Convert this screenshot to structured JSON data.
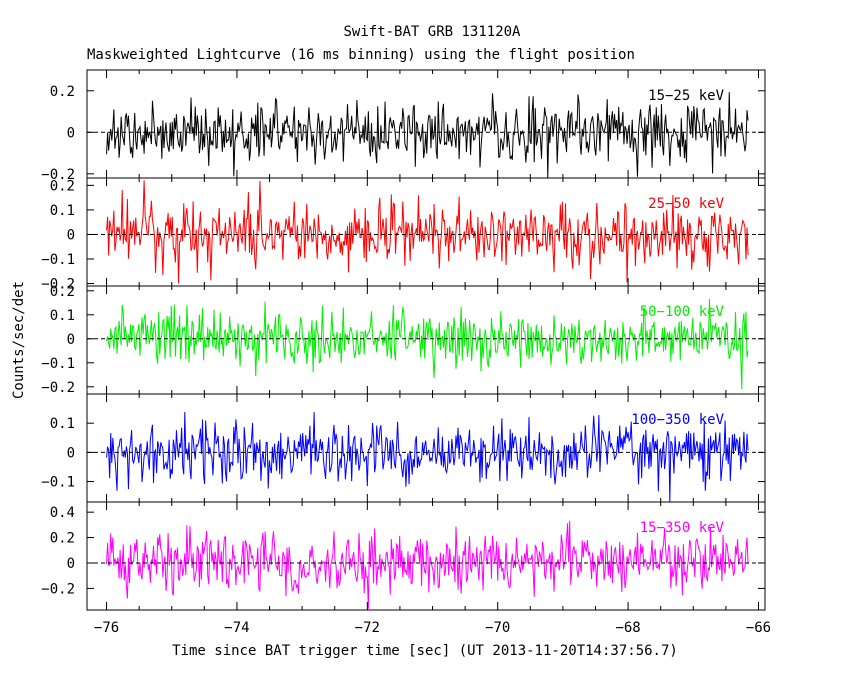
{
  "chart_data": {
    "type": "line",
    "title": "Swift-BAT GRB 131120A",
    "subtitle": "Maskweighted Lightcurve (16 ms binning) using the flight position",
    "ylabel": "Counts/sec/det",
    "xlabel": "Time since BAT trigger time [sec] (UT 2013-11-20T14:37:56.7)",
    "xlim": [
      -76.3,
      -65.9
    ],
    "x_ticks": [
      "-76",
      "-74",
      "-72",
      "-70",
      "-68",
      "-66"
    ],
    "x_tick_values": [
      -76,
      -74,
      -72,
      -70,
      -68,
      -66
    ],
    "x_start": -76.0,
    "x_end": -66.16,
    "bin_sec": 0.016,
    "panels": [
      {
        "name": "15-25 keV",
        "label": "15−25 keV",
        "color": "#000000",
        "ylim": [
          -0.22,
          0.3
        ],
        "y_ticks": [
          "0.2",
          "0",
          "−0.2"
        ],
        "y_tick_values": [
          0.2,
          0,
          -0.2
        ],
        "noise_sigma": 0.07,
        "noise_max": 0.3
      },
      {
        "name": "25-50 keV",
        "label": "25−50 keV",
        "color": "#ff0000",
        "ylim": [
          -0.21,
          0.23
        ],
        "y_ticks": [
          "0.2",
          "0.1",
          "0",
          "−0.1",
          "−0.2"
        ],
        "y_tick_values": [
          0.2,
          0.1,
          0,
          -0.1,
          -0.2
        ],
        "noise_sigma": 0.065,
        "noise_max": 0.22
      },
      {
        "name": "50-100 keV",
        "label": "50−100 keV",
        "color": "#00ee00",
        "ylim": [
          -0.23,
          0.22
        ],
        "y_ticks": [
          "0.2",
          "0.1",
          "0",
          "−0.1",
          "−0.2"
        ],
        "y_tick_values": [
          0.2,
          0.1,
          0,
          -0.1,
          -0.2
        ],
        "noise_sigma": 0.06,
        "noise_max": 0.21
      },
      {
        "name": "100-350 keV",
        "label": "100−350 keV",
        "color": "#0000ff",
        "ylim": [
          -0.17,
          0.2
        ],
        "y_ticks": [
          "0.1",
          "0",
          "−0.1"
        ],
        "y_tick_values": [
          0.1,
          0,
          -0.1
        ],
        "noise_sigma": 0.05,
        "noise_max": 0.18
      },
      {
        "name": "15-350 keV",
        "label": "15−350 keV",
        "color": "#ff00ff",
        "ylim": [
          -0.37,
          0.48
        ],
        "y_ticks": [
          "0.4",
          "0.2",
          "0",
          "−0.2"
        ],
        "y_tick_values": [
          0.4,
          0.2,
          0,
          -0.2
        ],
        "noise_sigma": 0.12,
        "noise_max": 0.45
      }
    ]
  }
}
